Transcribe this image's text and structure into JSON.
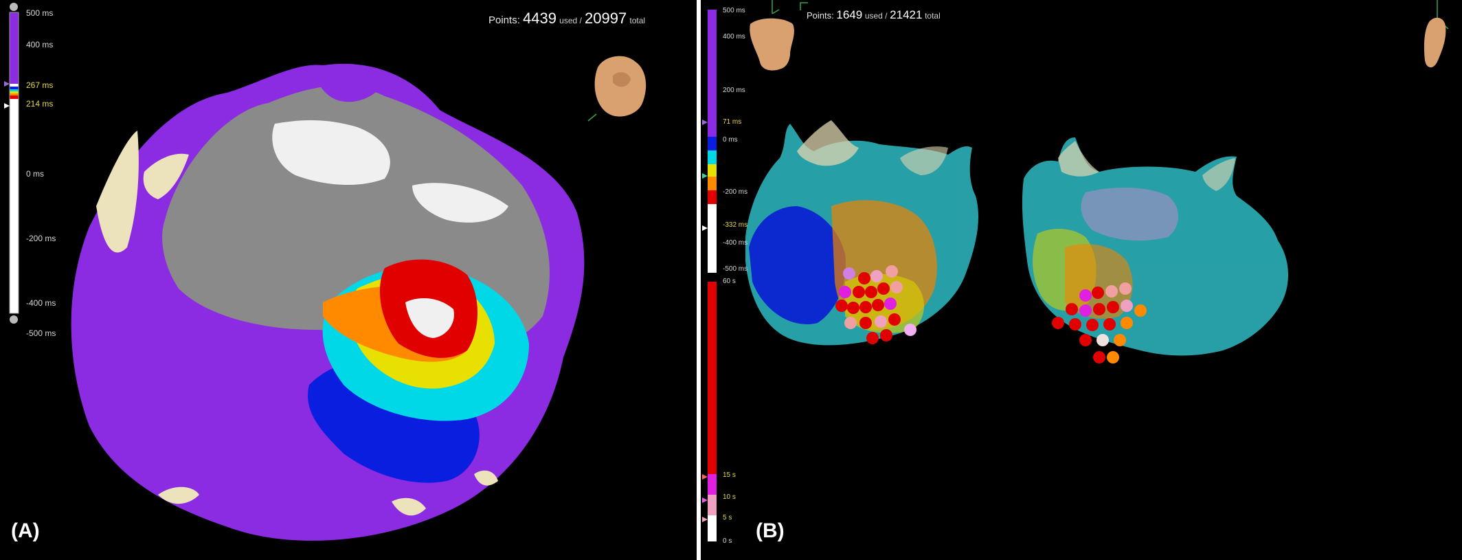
{
  "panel_a": {
    "label": "(A)",
    "points": {
      "prefix": "Points:",
      "used": "4439",
      "used_word": "used /",
      "total": "20997",
      "total_word": "total"
    },
    "scale_ticks": [
      "500 ms",
      "400 ms",
      "267 ms",
      "214 ms",
      "0 ms",
      "-200 ms",
      "-400 ms",
      "-500 ms"
    ]
  },
  "panel_b": {
    "label": "(B)",
    "points": {
      "prefix": "Points:",
      "used": "1649",
      "used_word": "used /",
      "total": "21421",
      "total_word": "total"
    },
    "activation_ticks": [
      "500 ms",
      "400 ms",
      "200 ms",
      "71 ms",
      "0 ms",
      "-200 ms",
      "-332 ms",
      "-400 ms",
      "-500 ms"
    ],
    "time_ticks": [
      "60 s",
      "15 s",
      "10 s",
      "5 s",
      "0 s"
    ]
  },
  "colors": {
    "purple": "#8b2be2",
    "grey": "#8a8a8a",
    "white": "#f0f0f0",
    "red": "#e00000",
    "orange": "#ff8a00",
    "yellow": "#e8e000",
    "cyan": "#00d8e8",
    "blue": "#0a1ee0",
    "beige": "#ece2bc",
    "skin": "#d9a070",
    "teal": "#2aa8b0",
    "magenta": "#e020e0",
    "pink": "#f0a0c0"
  }
}
